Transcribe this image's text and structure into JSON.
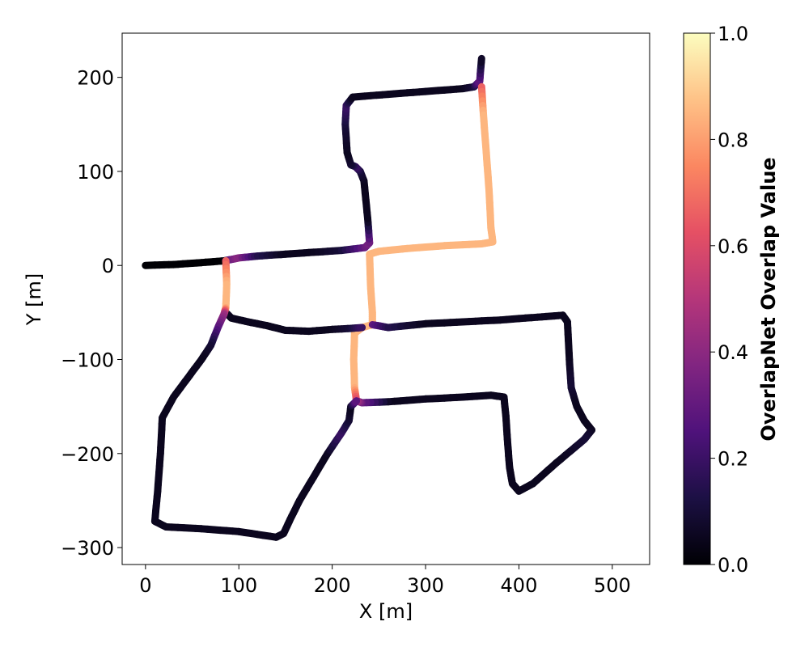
{
  "chart_data": {
    "type": "line",
    "title": "",
    "xlabel": "X [m]",
    "ylabel": "Y [m]",
    "xlim": [
      -25,
      540
    ],
    "ylim": [
      -318,
      247
    ],
    "x_ticks": [
      0,
      100,
      200,
      300,
      400,
      500
    ],
    "y_ticks": [
      200,
      100,
      0,
      -100,
      -200,
      -300
    ],
    "x_tick_labels": [
      "0",
      "100",
      "200",
      "300",
      "400",
      "500"
    ],
    "y_tick_labels": [
      "200",
      "100",
      "0",
      "−100",
      "−200",
      "−300"
    ],
    "grid": false,
    "colormap": "magma",
    "colorbar": {
      "label": "OverlapNet Overlap Value",
      "range": [
        0.0,
        1.0
      ],
      "ticks": [
        0.0,
        0.2,
        0.4,
        0.6,
        0.8,
        1.0
      ],
      "tick_labels": [
        "0.0",
        "0.2",
        "0.4",
        "0.6",
        "0.8",
        "1.0"
      ],
      "colors": [
        "#000004",
        "#1c1044",
        "#4f127b",
        "#812581",
        "#b5367a",
        "#e55064",
        "#fb8761",
        "#fec287",
        "#fcfdbf"
      ]
    },
    "series": [
      {
        "points": [
          [
            0,
            0,
            0
          ],
          [
            30,
            1,
            0
          ],
          [
            60,
            3,
            0
          ],
          [
            85,
            5,
            0
          ],
          [
            90,
            6,
            0.3
          ],
          [
            100,
            8,
            0.4
          ],
          [
            120,
            10,
            0.15
          ],
          [
            150,
            12,
            0.05
          ],
          [
            180,
            14,
            0.05
          ],
          [
            210,
            16,
            0.1
          ],
          [
            235,
            19,
            0.3
          ],
          [
            240,
            24,
            0.35
          ],
          [
            238,
            50,
            0.05
          ],
          [
            234,
            90,
            0.05
          ],
          [
            230,
            100,
            0.1
          ],
          [
            225,
            105,
            0.2
          ],
          [
            220,
            107,
            0.1
          ],
          [
            216,
            120,
            0.05
          ],
          [
            214,
            150,
            0.1
          ],
          [
            215,
            170,
            0.2
          ],
          [
            222,
            179,
            0.05
          ],
          [
            260,
            182,
            0.05
          ],
          [
            300,
            185,
            0.05
          ],
          [
            340,
            188,
            0.05
          ],
          [
            352,
            190,
            0.1
          ],
          [
            358,
            196,
            0.3
          ],
          [
            360,
            220,
            0.05
          ]
        ]
      },
      {
        "points": [
          [
            360,
            190,
            0.65
          ],
          [
            362,
            160,
            0.85
          ],
          [
            365,
            120,
            0.85
          ],
          [
            368,
            80,
            0.85
          ],
          [
            370,
            40,
            0.85
          ],
          [
            372,
            25,
            0.85
          ],
          [
            360,
            23,
            0.85
          ],
          [
            320,
            21,
            0.85
          ],
          [
            280,
            18,
            0.85
          ],
          [
            250,
            15,
            0.85
          ],
          [
            240,
            12,
            0.85
          ],
          [
            241,
            -20,
            0.85
          ],
          [
            243,
            -50,
            0.85
          ],
          [
            243,
            -63,
            0.85
          ],
          [
            232,
            -66,
            0.85
          ],
          [
            224,
            -72,
            0.85
          ],
          [
            223,
            -100,
            0.85
          ],
          [
            224,
            -130,
            0.85
          ],
          [
            226,
            -144,
            0.6
          ]
        ]
      },
      {
        "points": [
          [
            243,
            -63,
            0.3
          ],
          [
            260,
            -66,
            0.15
          ],
          [
            300,
            -62,
            0.05
          ],
          [
            340,
            -60,
            0.05
          ],
          [
            380,
            -58,
            0.05
          ],
          [
            420,
            -55,
            0.05
          ],
          [
            447,
            -53,
            0.05
          ],
          [
            452,
            -60,
            0.05
          ],
          [
            454,
            -100,
            0.05
          ],
          [
            456,
            -130,
            0.1
          ],
          [
            462,
            -150,
            0.05
          ],
          [
            470,
            -165,
            0.05
          ],
          [
            478,
            -175,
            0.05
          ],
          [
            470,
            -185,
            0.1
          ],
          [
            440,
            -210,
            0.05
          ],
          [
            415,
            -232,
            0.05
          ],
          [
            400,
            -240,
            0.05
          ],
          [
            393,
            -232,
            0.05
          ],
          [
            390,
            -215,
            0.05
          ],
          [
            388,
            -190,
            0.05
          ],
          [
            386,
            -160,
            0.05
          ],
          [
            384,
            -140,
            0.05
          ],
          [
            370,
            -138,
            0.05
          ],
          [
            340,
            -140,
            0.05
          ],
          [
            300,
            -142,
            0.05
          ],
          [
            260,
            -145,
            0.05
          ],
          [
            232,
            -146,
            0.3
          ],
          [
            226,
            -144,
            0.45
          ]
        ]
      },
      {
        "points": [
          [
            86,
            -50,
            0.1
          ],
          [
            92,
            -56,
            0.05
          ],
          [
            110,
            -60,
            0.05
          ],
          [
            130,
            -64,
            0.05
          ],
          [
            150,
            -69,
            0.05
          ],
          [
            175,
            -70,
            0.05
          ],
          [
            200,
            -68,
            0.05
          ],
          [
            220,
            -67,
            0.1
          ],
          [
            232,
            -66,
            0.2
          ]
        ]
      },
      {
        "points": [
          [
            86,
            5,
            0.65
          ],
          [
            87,
            -20,
            0.85
          ],
          [
            86,
            -45,
            0.85
          ],
          [
            84,
            -52,
            0.45
          ],
          [
            78,
            -65,
            0.3
          ],
          [
            70,
            -85,
            0.1
          ],
          [
            60,
            -100,
            0.05
          ],
          [
            45,
            -120,
            0.05
          ],
          [
            30,
            -140,
            0.05
          ],
          [
            18,
            -162,
            0.05
          ],
          [
            16,
            -200,
            0.05
          ],
          [
            13,
            -240,
            0.05
          ],
          [
            10,
            -272,
            0.05
          ],
          [
            22,
            -278,
            0.05
          ],
          [
            60,
            -280,
            0.05
          ],
          [
            100,
            -283,
            0.05
          ],
          [
            140,
            -289,
            0.05
          ],
          [
            148,
            -285,
            0.05
          ],
          [
            155,
            -270,
            0.05
          ],
          [
            165,
            -250,
            0.05
          ],
          [
            180,
            -225,
            0.05
          ],
          [
            195,
            -200,
            0.05
          ],
          [
            210,
            -178,
            0.2
          ],
          [
            218,
            -165,
            0.1
          ],
          [
            220,
            -150,
            0.05
          ],
          [
            226,
            -144,
            0.3
          ]
        ]
      }
    ]
  }
}
